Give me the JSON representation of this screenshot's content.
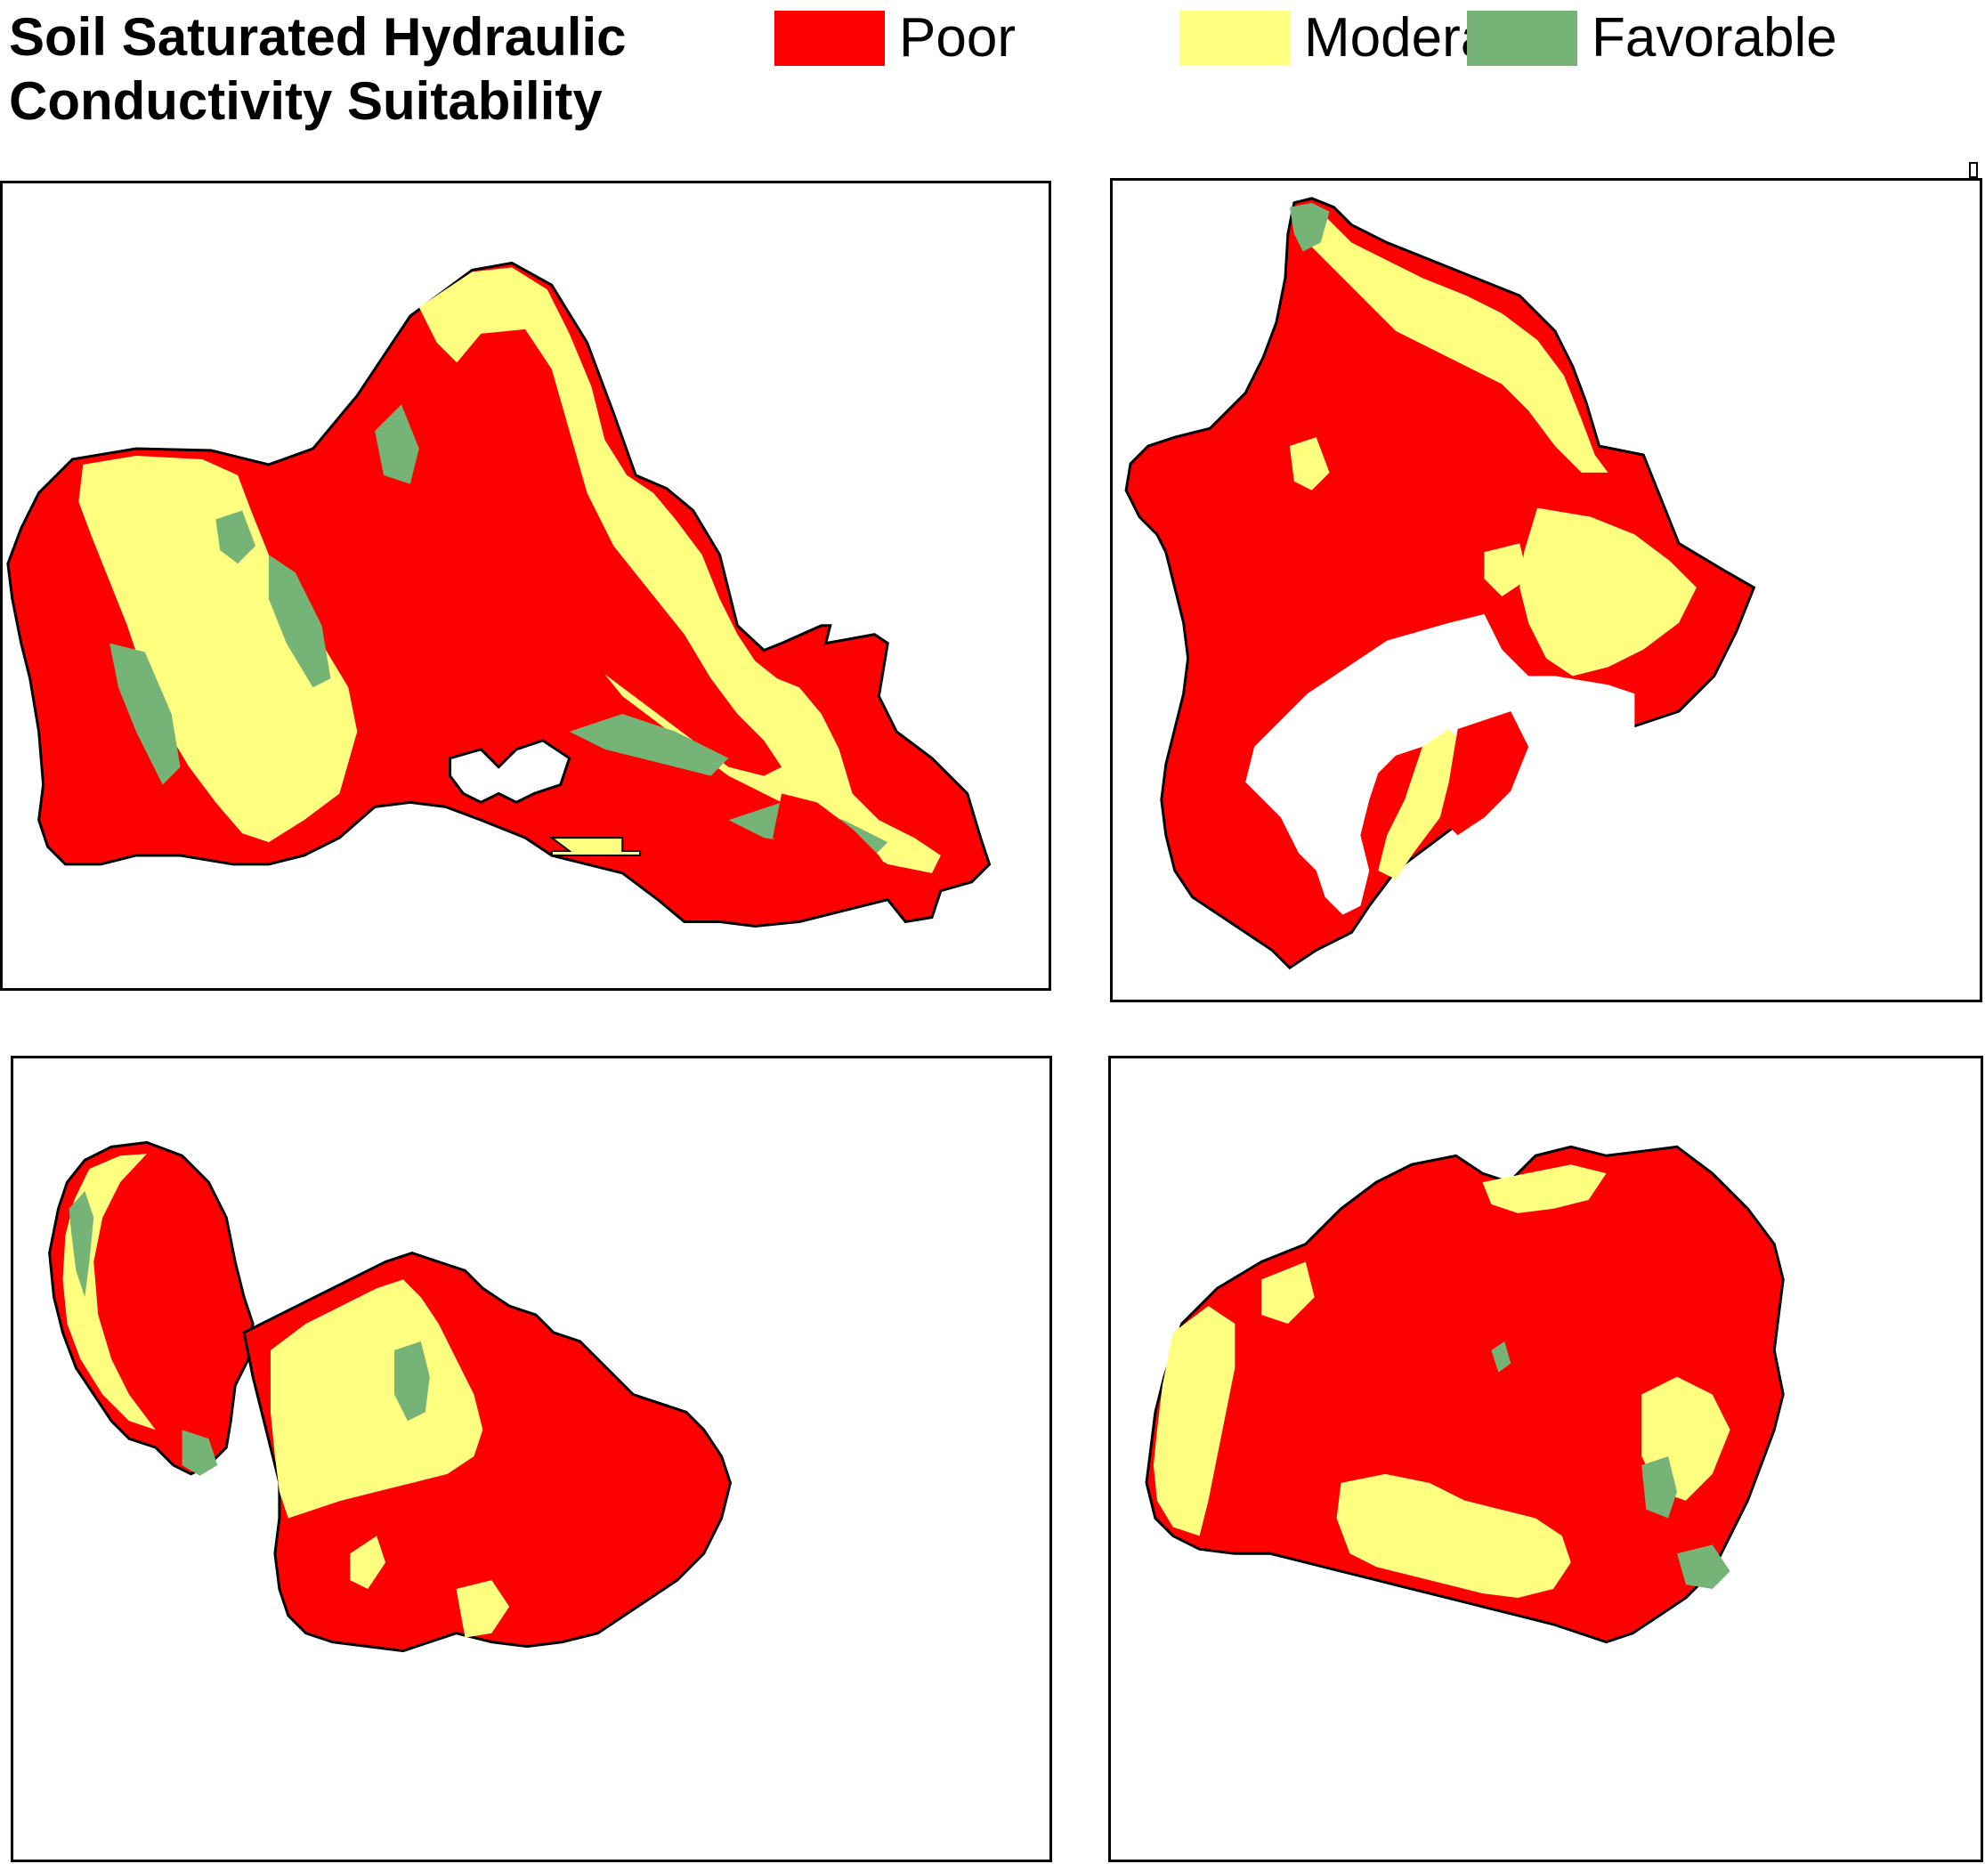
{
  "title": {
    "line1": "Soil Saturated Hydraulic",
    "line2": "Conductivity Suitability"
  },
  "legend": [
    {
      "label": "Poor",
      "color": "#ff0000"
    },
    {
      "label": "Moderate",
      "color": "#ffff80"
    },
    {
      "label": "Favorable",
      "color": "#76b376"
    }
  ],
  "colors": {
    "poor": "#ff0000",
    "moderate": "#ffff80",
    "favorable": "#76b376",
    "outline": "#000000",
    "background": "#ffffff"
  },
  "panels": [
    {
      "id": "oahu"
    },
    {
      "id": "hawaii"
    },
    {
      "id": "maui"
    },
    {
      "id": "kauai"
    }
  ]
}
